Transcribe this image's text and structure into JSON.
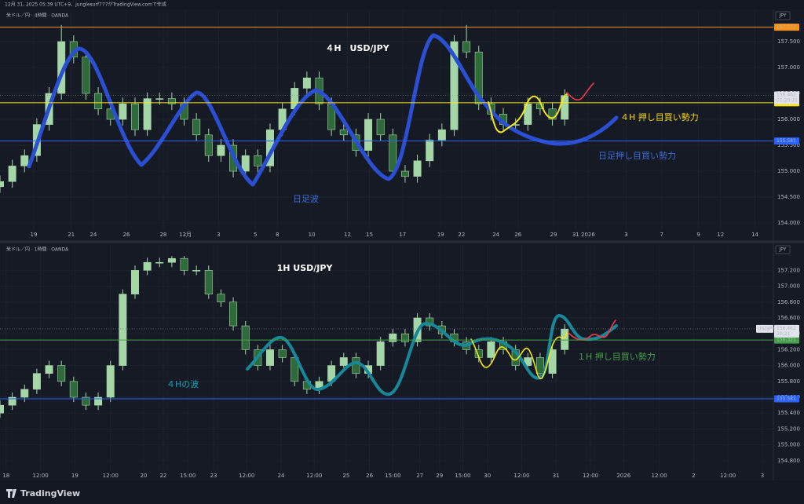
{
  "header": "12月 31, 2025 05:39 UTC+9、junglesurf777がTradingView.comで作成",
  "footer": "TradingView",
  "chart_data": [
    {
      "type": "candlestick",
      "symbol": "米ドル／円 · 4時間 · OANDA",
      "currency": "JPY",
      "title": "４H　USD/JPY",
      "x": [
        0,
        1,
        2,
        3,
        4,
        5,
        6,
        7,
        8,
        9,
        10,
        11,
        12,
        13,
        14,
        15,
        16,
        17,
        18,
        19,
        20,
        21,
        22,
        23,
        24,
        25,
        26,
        27,
        28,
        29,
        30,
        31,
        32,
        33,
        34,
        35,
        36,
        37,
        38,
        39,
        40,
        41,
        42,
        43,
        44,
        45,
        46
      ],
      "open": [
        154.7,
        154.8,
        155.1,
        155.3,
        155.9,
        156.5,
        157.5,
        157.2,
        156.5,
        156.2,
        156.0,
        156.3,
        155.8,
        156.4,
        156.4,
        156.3,
        156.0,
        155.7,
        155.3,
        155.5,
        155.0,
        155.3,
        155.1,
        155.8,
        156.2,
        156.6,
        156.8,
        156.3,
        155.8,
        155.7,
        155.4,
        156.0,
        155.7,
        155.0,
        154.9,
        155.2,
        155.6,
        155.8,
        157.5,
        157.3,
        156.3,
        156.1,
        155.9,
        155.9,
        156.3,
        156.2,
        156.0
      ],
      "high": [
        154.92,
        155.22,
        155.42,
        156.02,
        156.62,
        157.82,
        157.62,
        157.32,
        156.62,
        156.32,
        156.42,
        156.42,
        156.52,
        156.52,
        156.52,
        156.42,
        156.12,
        155.82,
        155.62,
        155.62,
        155.42,
        155.42,
        155.92,
        156.32,
        156.72,
        156.92,
        156.92,
        156.42,
        155.92,
        155.82,
        156.12,
        156.12,
        155.82,
        155.12,
        155.32,
        155.72,
        155.92,
        157.62,
        157.82,
        157.42,
        156.42,
        156.22,
        156.02,
        156.42,
        156.42,
        156.32,
        156.58
      ],
      "low": [
        154.58,
        154.68,
        154.98,
        155.18,
        155.78,
        156.38,
        157.08,
        156.38,
        156.08,
        155.88,
        155.88,
        155.68,
        155.68,
        156.28,
        156.18,
        155.88,
        155.58,
        155.18,
        155.18,
        154.88,
        154.88,
        154.98,
        154.98,
        155.68,
        156.08,
        156.48,
        156.18,
        155.68,
        155.58,
        155.28,
        155.28,
        155.58,
        154.88,
        154.78,
        154.78,
        155.08,
        155.48,
        155.68,
        157.18,
        156.18,
        155.98,
        155.78,
        155.78,
        155.78,
        156.08,
        155.88,
        155.88
      ],
      "close": [
        154.8,
        155.1,
        155.3,
        155.9,
        156.5,
        157.5,
        157.2,
        156.5,
        156.2,
        156.0,
        156.3,
        155.8,
        156.4,
        156.4,
        156.3,
        156.0,
        155.7,
        155.3,
        155.5,
        155.0,
        155.3,
        155.1,
        155.8,
        156.2,
        156.6,
        156.8,
        156.3,
        155.8,
        155.7,
        155.4,
        156.0,
        155.7,
        155.0,
        154.9,
        155.2,
        155.6,
        155.8,
        157.5,
        157.3,
        156.3,
        156.1,
        155.9,
        155.9,
        156.3,
        156.2,
        156.0,
        156.46
      ],
      "up_color": "#a5d6a7",
      "down_color": "#2f6b3a",
      "xlim": [
        0,
        63
      ],
      "xticks": [
        {
          "value": 2.75,
          "label": "19"
        },
        {
          "value": 5.8,
          "label": "21"
        },
        {
          "value": 7.6,
          "label": "24"
        },
        {
          "value": 10.3,
          "label": "26"
        },
        {
          "value": 13.3,
          "label": "28"
        },
        {
          "value": 15.1,
          "label": "12月"
        },
        {
          "value": 17.8,
          "label": "3"
        },
        {
          "value": 20.8,
          "label": "5"
        },
        {
          "value": 22.6,
          "label": "8"
        },
        {
          "value": 25.4,
          "label": "10"
        },
        {
          "value": 28.3,
          "label": "12"
        },
        {
          "value": 30.1,
          "label": "15"
        },
        {
          "value": 32.8,
          "label": "17"
        },
        {
          "value": 35.9,
          "label": "19"
        },
        {
          "value": 37.6,
          "label": "22"
        },
        {
          "value": 40.4,
          "label": "24"
        },
        {
          "value": 42.2,
          "label": "26"
        },
        {
          "value": 45.1,
          "label": "29"
        },
        {
          "value": 46.9,
          "label": "31"
        },
        {
          "value": 47.9,
          "label": "2026"
        },
        {
          "value": 51.0,
          "label": "3"
        },
        {
          "value": 53.9,
          "label": "7"
        },
        {
          "value": 56.9,
          "label": "9"
        },
        {
          "value": 58.7,
          "label": "12"
        },
        {
          "value": 61.5,
          "label": "14"
        }
      ],
      "ylim": [
        153.88,
        158.09
      ],
      "yticks": [
        {
          "value": 154,
          "label": "154.000"
        },
        {
          "value": 154.5,
          "label": "154.500"
        },
        {
          "value": 155,
          "label": "155.000"
        },
        {
          "value": 155.5,
          "label": "155.500"
        },
        {
          "value": 156,
          "label": "156.000"
        },
        {
          "value": 156.5,
          "label": "156.500"
        },
        {
          "value": 157,
          "label": "157.000"
        },
        {
          "value": 157.5,
          "label": "157.500"
        }
      ],
      "hlines": [
        {
          "value": 157.777,
          "label": "157.777",
          "color": "#f7931a"
        },
        {
          "value": 156.32,
          "label": "156.320",
          "color": "#f5e61a"
        },
        {
          "value": 155.581,
          "label": "155.581",
          "color": "#2962ff"
        }
      ],
      "last_price": {
        "value": 156.462,
        "label": "156.462",
        "countdown": "01:20:21"
      },
      "annotations": [
        {
          "text": "４H 押し目買い勢力",
          "color": "#f5d90a"
        },
        {
          "text": "日足押し目買い勢力",
          "color": "#3a6bd6"
        },
        {
          "text": "日足波",
          "color": "#3a6bd6"
        }
      ]
    },
    {
      "type": "candlestick",
      "symbol": "米ドル／円 · 1時間 · OANDA",
      "currency": "JPY",
      "title": "1H USD/JPY",
      "x": [
        0,
        1,
        2,
        3,
        4,
        5,
        6,
        7,
        8,
        9,
        10,
        11,
        12,
        13,
        14,
        15,
        16,
        17,
        18,
        19,
        20,
        21,
        22,
        23,
        24,
        25,
        26,
        27,
        28,
        29,
        30,
        31,
        32,
        33,
        34,
        35,
        36,
        37,
        38,
        39,
        40,
        41,
        42,
        43,
        44,
        45,
        46
      ],
      "open": [
        155.4,
        155.5,
        155.6,
        155.7,
        155.9,
        156.0,
        155.8,
        155.6,
        155.5,
        155.6,
        156.0,
        156.9,
        157.2,
        157.3,
        157.3,
        157.35,
        157.2,
        157.2,
        156.9,
        156.8,
        156.5,
        156.2,
        156.0,
        156.2,
        156.1,
        155.8,
        155.7,
        155.8,
        156.0,
        156.1,
        155.9,
        156.0,
        156.3,
        156.4,
        156.3,
        156.6,
        156.5,
        156.4,
        156.3,
        156.2,
        156.1,
        156.3,
        156.2,
        156.0,
        156.1,
        155.9,
        156.2
      ],
      "high": [
        155.56,
        155.66,
        155.76,
        155.96,
        156.06,
        156.06,
        155.86,
        155.66,
        155.66,
        156.06,
        156.96,
        157.26,
        157.36,
        157.36,
        157.38,
        157.38,
        157.26,
        157.26,
        156.96,
        156.86,
        156.56,
        156.26,
        156.26,
        156.26,
        156.16,
        155.86,
        155.86,
        156.06,
        156.16,
        156.16,
        156.06,
        156.36,
        156.46,
        156.46,
        156.66,
        156.66,
        156.56,
        156.46,
        156.36,
        156.26,
        156.36,
        156.36,
        156.26,
        156.16,
        156.16,
        156.26,
        156.52
      ],
      "low": [
        155.34,
        155.44,
        155.54,
        155.64,
        155.84,
        155.74,
        155.54,
        155.44,
        155.44,
        155.54,
        155.94,
        156.84,
        157.14,
        157.24,
        157.24,
        157.14,
        157.14,
        156.84,
        156.74,
        156.44,
        156.14,
        155.94,
        155.94,
        156.04,
        155.74,
        155.64,
        155.64,
        155.74,
        155.94,
        155.84,
        155.84,
        155.94,
        156.24,
        156.24,
        156.24,
        156.44,
        156.34,
        156.24,
        156.14,
        156.04,
        156.04,
        156.14,
        155.94,
        155.94,
        155.84,
        155.84,
        156.14
      ],
      "close": [
        155.5,
        155.6,
        155.7,
        155.9,
        156.0,
        155.8,
        155.6,
        155.5,
        155.6,
        156.0,
        156.9,
        157.2,
        157.3,
        157.3,
        157.35,
        157.2,
        157.2,
        156.9,
        156.8,
        156.5,
        156.2,
        156.0,
        156.2,
        156.1,
        155.8,
        155.7,
        155.8,
        156.0,
        156.1,
        155.9,
        156.0,
        156.3,
        156.4,
        156.3,
        156.6,
        156.5,
        156.4,
        156.3,
        156.2,
        156.1,
        156.3,
        156.2,
        156.0,
        156.1,
        155.9,
        156.2,
        156.46
      ],
      "up_color": "#a5d6a7",
      "down_color": "#2f6b3a",
      "xlim": [
        0,
        63
      ],
      "xticks": [
        {
          "value": 0.5,
          "label": "18"
        },
        {
          "value": 3.3,
          "label": "12:00"
        },
        {
          "value": 6.1,
          "label": "19"
        },
        {
          "value": 9.0,
          "label": "12:00"
        },
        {
          "value": 11.7,
          "label": "20"
        },
        {
          "value": 13.3,
          "label": "22"
        },
        {
          "value": 15.3,
          "label": "15:00"
        },
        {
          "value": 17.4,
          "label": "23"
        },
        {
          "value": 20.1,
          "label": "12:00"
        },
        {
          "value": 22.9,
          "label": "24"
        },
        {
          "value": 25.6,
          "label": "12:00"
        },
        {
          "value": 28.2,
          "label": "25"
        },
        {
          "value": 30.1,
          "label": "26"
        },
        {
          "value": 32.0,
          "label": "15:00"
        },
        {
          "value": 34.2,
          "label": "27"
        },
        {
          "value": 35.8,
          "label": "29"
        },
        {
          "value": 37.7,
          "label": "15:00"
        },
        {
          "value": 39.7,
          "label": "30"
        },
        {
          "value": 42.5,
          "label": "12:00"
        },
        {
          "value": 45.3,
          "label": "31"
        },
        {
          "value": 48.1,
          "label": "12:00"
        },
        {
          "value": 50.8,
          "label": "2026"
        },
        {
          "value": 53.7,
          "label": "12:00"
        },
        {
          "value": 56.5,
          "label": "2"
        },
        {
          "value": 59.3,
          "label": "12:00"
        },
        {
          "value": 62.1,
          "label": "3"
        }
      ],
      "ylim": [
        154.67,
        157.52
      ],
      "yticks": [
        {
          "value": 154.8,
          "label": "154.800"
        },
        {
          "value": 155.0,
          "label": "155.000"
        },
        {
          "value": 155.2,
          "label": "155.200"
        },
        {
          "value": 155.4,
          "label": "155.400"
        },
        {
          "value": 155.6,
          "label": "155.600"
        },
        {
          "value": 155.8,
          "label": "155.800"
        },
        {
          "value": 156.0,
          "label": "156.000"
        },
        {
          "value": 156.2,
          "label": "156.200"
        },
        {
          "value": 156.4,
          "label": "156.400"
        },
        {
          "value": 156.6,
          "label": "156.600"
        },
        {
          "value": 156.8,
          "label": "156.800"
        },
        {
          "value": 157.0,
          "label": "157.000"
        },
        {
          "value": 157.2,
          "label": "157.200"
        }
      ],
      "hlines": [
        {
          "value": 156.321,
          "label": "156.321",
          "color": "#43a047"
        },
        {
          "value": 155.581,
          "label": "155.581",
          "color": "#2962ff"
        }
      ],
      "last_price": {
        "value": 156.462,
        "label": "156.462",
        "countdown": "20:21",
        "symbol_tag": "USDJPY"
      },
      "annotations": [
        {
          "text": "１H 押し目買い勢力",
          "color": "#43a047"
        },
        {
          "text": "４Hの波",
          "color": "#1ba3b8"
        }
      ]
    }
  ]
}
